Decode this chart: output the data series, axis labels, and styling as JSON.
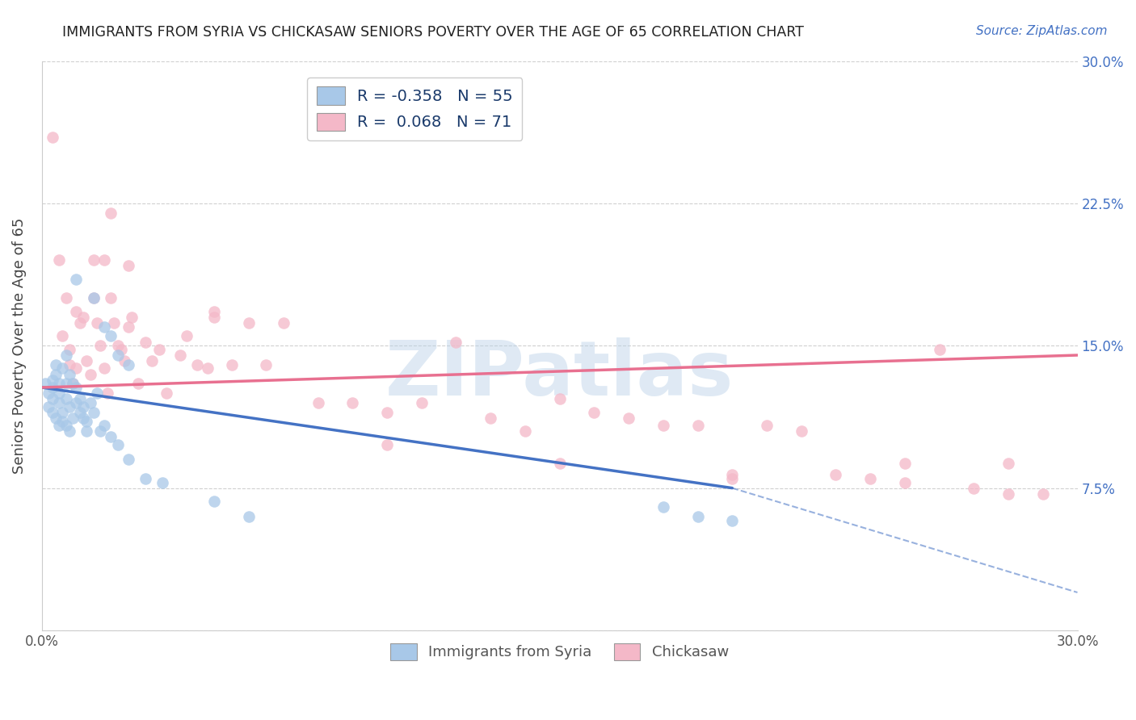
{
  "title": "IMMIGRANTS FROM SYRIA VS CHICKASAW SENIORS POVERTY OVER THE AGE OF 65 CORRELATION CHART",
  "source": "Source: ZipAtlas.com",
  "ylabel": "Seniors Poverty Over the Age of 65",
  "xlim": [
    0.0,
    0.3
  ],
  "ylim": [
    0.0,
    0.3
  ],
  "blue_R": "-0.358",
  "blue_N": "55",
  "pink_R": "0.068",
  "pink_N": "71",
  "legend_label1": "Immigrants from Syria",
  "legend_label2": "Chickasaw",
  "blue_color": "#a8c8e8",
  "pink_color": "#f4b8c8",
  "blue_line_color": "#4472c4",
  "pink_line_color": "#e87090",
  "watermark": "ZIPatlas",
  "background_color": "#ffffff",
  "grid_color": "#d0d0d0",
  "blue_scatter_x": [
    0.001,
    0.002,
    0.002,
    0.003,
    0.003,
    0.003,
    0.003,
    0.004,
    0.004,
    0.004,
    0.005,
    0.005,
    0.005,
    0.005,
    0.006,
    0.006,
    0.006,
    0.007,
    0.007,
    0.007,
    0.007,
    0.008,
    0.008,
    0.008,
    0.009,
    0.009,
    0.01,
    0.01,
    0.01,
    0.011,
    0.011,
    0.012,
    0.012,
    0.013,
    0.013,
    0.014,
    0.015,
    0.016,
    0.017,
    0.018,
    0.02,
    0.022,
    0.025,
    0.03,
    0.035,
    0.05,
    0.06,
    0.015,
    0.018,
    0.02,
    0.022,
    0.025,
    0.18,
    0.19,
    0.2
  ],
  "blue_scatter_y": [
    0.13,
    0.125,
    0.118,
    0.132,
    0.128,
    0.122,
    0.115,
    0.14,
    0.135,
    0.112,
    0.13,
    0.125,
    0.12,
    0.108,
    0.138,
    0.115,
    0.11,
    0.145,
    0.13,
    0.122,
    0.108,
    0.135,
    0.118,
    0.105,
    0.13,
    0.112,
    0.128,
    0.12,
    0.185,
    0.122,
    0.115,
    0.118,
    0.112,
    0.11,
    0.105,
    0.12,
    0.115,
    0.125,
    0.105,
    0.108,
    0.102,
    0.098,
    0.09,
    0.08,
    0.078,
    0.068,
    0.06,
    0.175,
    0.16,
    0.155,
    0.145,
    0.14,
    0.065,
    0.06,
    0.058
  ],
  "pink_scatter_x": [
    0.003,
    0.005,
    0.006,
    0.007,
    0.008,
    0.008,
    0.009,
    0.01,
    0.01,
    0.011,
    0.012,
    0.013,
    0.014,
    0.015,
    0.015,
    0.016,
    0.017,
    0.018,
    0.018,
    0.019,
    0.02,
    0.021,
    0.022,
    0.023,
    0.024,
    0.025,
    0.026,
    0.028,
    0.03,
    0.032,
    0.034,
    0.036,
    0.04,
    0.042,
    0.045,
    0.048,
    0.05,
    0.055,
    0.06,
    0.065,
    0.07,
    0.08,
    0.09,
    0.1,
    0.11,
    0.12,
    0.13,
    0.14,
    0.15,
    0.16,
    0.17,
    0.18,
    0.19,
    0.2,
    0.21,
    0.22,
    0.23,
    0.24,
    0.25,
    0.26,
    0.27,
    0.28,
    0.29,
    0.02,
    0.025,
    0.05,
    0.1,
    0.15,
    0.2,
    0.25,
    0.28
  ],
  "pink_scatter_y": [
    0.26,
    0.195,
    0.155,
    0.175,
    0.148,
    0.14,
    0.13,
    0.138,
    0.168,
    0.162,
    0.165,
    0.142,
    0.135,
    0.195,
    0.175,
    0.162,
    0.15,
    0.195,
    0.138,
    0.125,
    0.175,
    0.162,
    0.15,
    0.148,
    0.142,
    0.16,
    0.165,
    0.13,
    0.152,
    0.142,
    0.148,
    0.125,
    0.145,
    0.155,
    0.14,
    0.138,
    0.165,
    0.14,
    0.162,
    0.14,
    0.162,
    0.12,
    0.12,
    0.115,
    0.12,
    0.152,
    0.112,
    0.105,
    0.122,
    0.115,
    0.112,
    0.108,
    0.108,
    0.082,
    0.108,
    0.105,
    0.082,
    0.08,
    0.078,
    0.148,
    0.075,
    0.072,
    0.072,
    0.22,
    0.192,
    0.168,
    0.098,
    0.088,
    0.08,
    0.088,
    0.088
  ],
  "blue_line_x0": 0.0,
  "blue_line_x1": 0.2,
  "blue_line_x_dash_end": 0.3,
  "blue_line_y_at_x0": 0.128,
  "blue_line_y_at_x1": 0.075,
  "blue_line_y_at_xdash": 0.02,
  "pink_line_x0": 0.0,
  "pink_line_x1": 0.3,
  "pink_line_y_at_x0": 0.128,
  "pink_line_y_at_x1": 0.145
}
